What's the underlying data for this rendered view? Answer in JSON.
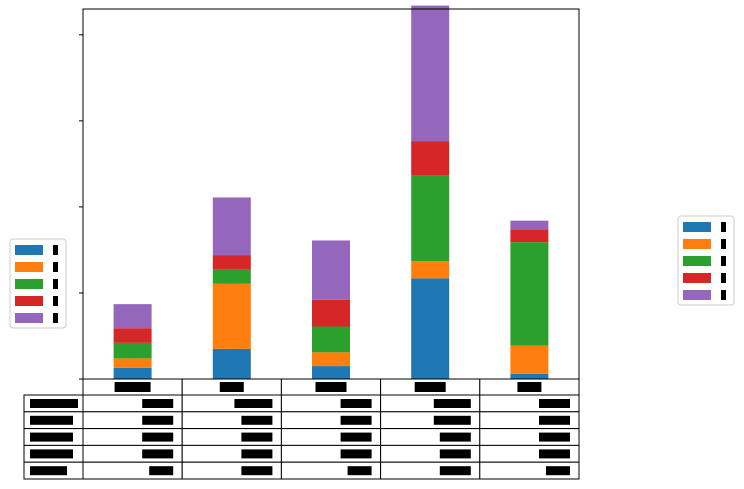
{
  "chart_data": {
    "type": "bar",
    "stacked": true,
    "title": "",
    "xlabel": "",
    "ylabel": "",
    "ylim": [
      0,
      4.3
    ],
    "ytick_values": [
      1,
      2,
      3,
      4
    ],
    "grid": false,
    "categories_redacted": true,
    "categories": [
      "",
      "",
      "",
      "",
      ""
    ],
    "series": [
      {
        "name": "",
        "color": "#1f77b4",
        "values": [
          0.13,
          0.35,
          0.15,
          1.17,
          0.06
        ]
      },
      {
        "name": "",
        "color": "#ff7f0e",
        "values": [
          0.11,
          0.76,
          0.16,
          0.2,
          0.33
        ]
      },
      {
        "name": "",
        "color": "#2ca02c",
        "values": [
          0.18,
          0.16,
          0.3,
          1.0,
          1.2
        ]
      },
      {
        "name": "",
        "color": "#d62728",
        "values": [
          0.17,
          0.17,
          0.31,
          0.39,
          0.15
        ]
      },
      {
        "name": "",
        "color": "#9467bd",
        "values": [
          0.28,
          0.67,
          0.69,
          1.58,
          0.1
        ]
      }
    ],
    "table": {
      "col_labels": [
        "",
        "",
        "",
        "",
        ""
      ],
      "row_labels": [
        "",
        "",
        "",
        "",
        ""
      ],
      "cells": [
        [
          "",
          "",
          "",
          "",
          ""
        ],
        [
          "",
          "",
          "",
          "",
          ""
        ],
        [
          "",
          "",
          "",
          "",
          ""
        ],
        [
          "",
          "",
          "",
          "",
          ""
        ],
        [
          "",
          "",
          "",
          "",
          ""
        ]
      ]
    },
    "legends": [
      {
        "placement": "center-left",
        "entries": [
          "",
          "",
          "",
          "",
          ""
        ]
      },
      {
        "placement": "center-right",
        "entries": [
          "",
          "",
          "",
          "",
          ""
        ]
      }
    ],
    "text_redacted": true
  }
}
